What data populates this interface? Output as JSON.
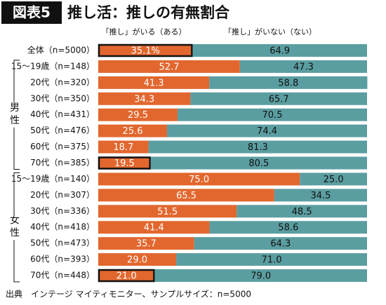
{
  "chart_data": {
    "type": "stacked-bar-100",
    "figure_label": "図表5",
    "title": "推し活：推しの有無割合",
    "categories": [
      "全体（n=5000）",
      "15～19歳（n=148）",
      "20代（n=320）",
      "30代（n=350）",
      "40代（n=431）",
      "50代（n=476）",
      "60代（n=375）",
      "70代（n=385）",
      "15～19歳（n=140）",
      "20代（n=307）",
      "30代（n=336）",
      "40代（n=418）",
      "50代（n=473）",
      "60代（n=393）",
      "70代（n=448）"
    ],
    "groups": [
      {
        "label": "男性",
        "rows": [
          1,
          2,
          3,
          4,
          5,
          6,
          7
        ]
      },
      {
        "label": "女性",
        "rows": [
          8,
          9,
          10,
          11,
          12,
          13,
          14
        ]
      }
    ],
    "highlighted_rows": [
      0,
      7,
      14
    ],
    "xlim": [
      0,
      100
    ],
    "series": [
      {
        "name": "「推し」がいる（ある）",
        "color": "#e2672e",
        "label_color": "#ffffff",
        "values": [
          35.1,
          52.7,
          41.3,
          34.3,
          29.5,
          25.6,
          18.7,
          19.5,
          75.0,
          65.5,
          51.5,
          41.4,
          35.7,
          29.0,
          21.0
        ],
        "value_labels": [
          "35.1%",
          "52.7",
          "41.3",
          "34.3",
          "29.5",
          "25.6",
          "18.7",
          "19.5",
          "75.0",
          "65.5",
          "51.5",
          "41.4",
          "35.7",
          "29.0",
          "21.0"
        ]
      },
      {
        "name": "「推し」がいない（ない）",
        "color": "#5b9ea1",
        "label_color": "#111111",
        "values": [
          64.9,
          47.3,
          58.8,
          65.7,
          70.5,
          74.4,
          81.3,
          80.5,
          25.0,
          34.5,
          48.5,
          58.6,
          64.3,
          71.0,
          79.0
        ],
        "value_labels": [
          "64.9",
          "47.3",
          "58.8",
          "65.7",
          "70.5",
          "74.4",
          "81.3",
          "80.5",
          "25.0",
          "34.5",
          "48.5",
          "58.6",
          "64.3",
          "71.0",
          "79.0"
        ]
      }
    ],
    "source": "出典　インテージ マイティモニター、サンプルサイズ：n=5000"
  }
}
